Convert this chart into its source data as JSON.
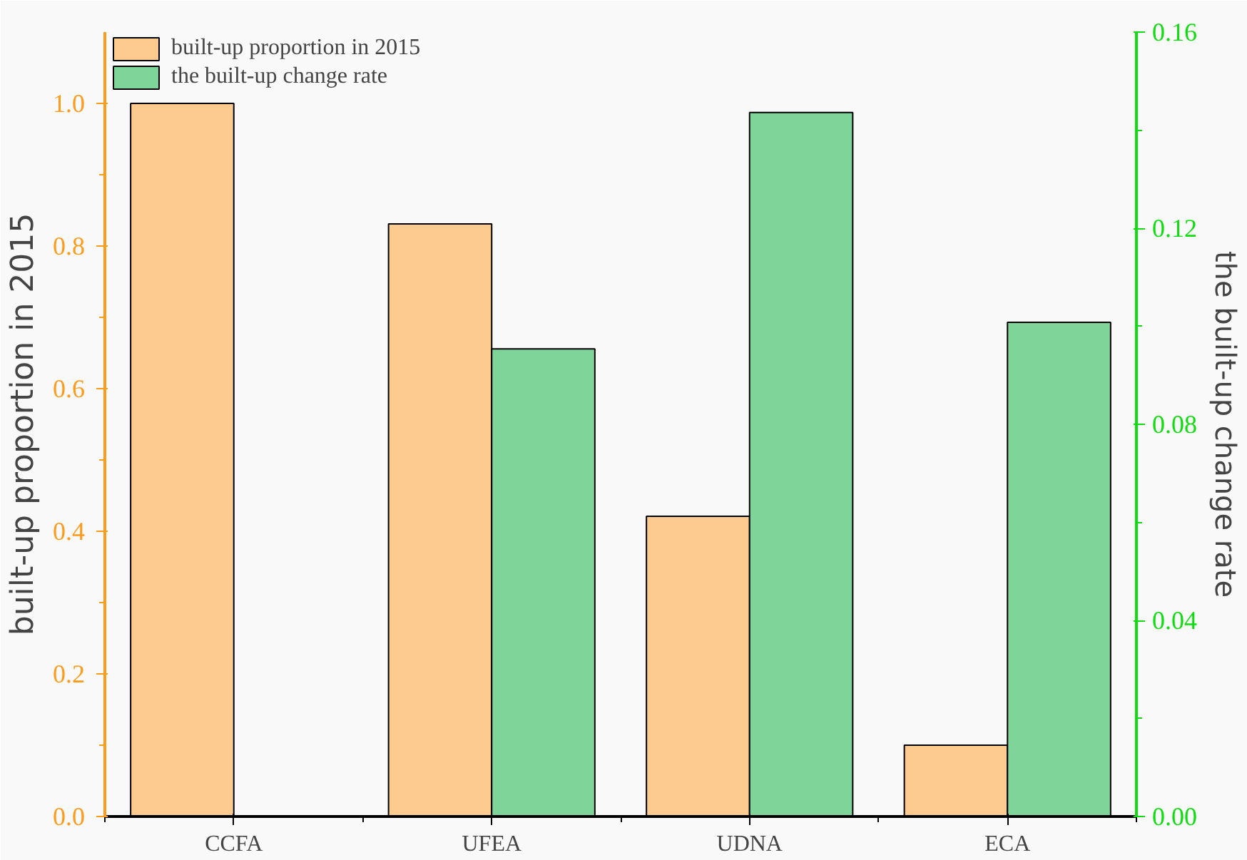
{
  "chart_data": {
    "type": "bar",
    "categories": [
      "CCFA",
      "UFEA",
      "UDNA",
      "ECA"
    ],
    "ylabel": "built-up proportion in 2015",
    "y2label": "the built-up change rate",
    "series": [
      {
        "name": "built-up proportion in 2015",
        "color": "#fdcb8f",
        "values": [
          1.0,
          0.831,
          0.421,
          0.1
        ]
      },
      {
        "name": "the built-up change rate",
        "color": "#7fd49a",
        "values": [
          null,
          0.0954,
          0.1436,
          0.1008
        ],
        "axis": "y2"
      }
    ],
    "ylim": [
      0,
      1.1
    ],
    "yticks": [
      {
        "value": 0,
        "label": "0.0"
      },
      {
        "value": 0.2,
        "label": "0.2"
      },
      {
        "value": 0.4,
        "label": "0.4"
      },
      {
        "value": 0.6,
        "label": "0.6"
      },
      {
        "value": 0.8,
        "label": "0.8"
      },
      {
        "value": 1,
        "label": "1.0"
      }
    ],
    "y2lim": [
      0,
      0.16
    ],
    "y2ticks": [
      {
        "value": 0,
        "label": "0.00"
      },
      0.04,
      0.08,
      0.12,
      0.16
    ],
    "legend": "top left",
    "grid": false
  }
}
